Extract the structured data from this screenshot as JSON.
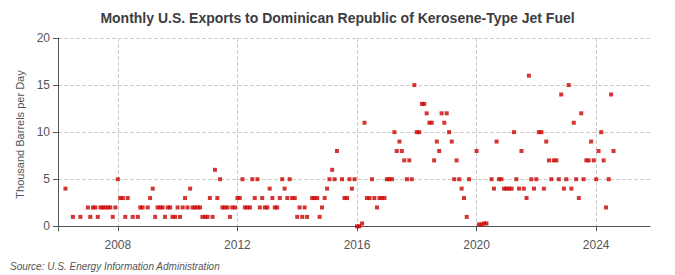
{
  "chart_data": {
    "type": "scatter",
    "title": "Monthly U.S. Exports to Dominican Republic of Kerosene-Type Jet Fuel",
    "ylabel": "Thousand Barrels per Day",
    "annotations": [
      "Source: U.S. Energy Information Administration"
    ],
    "color": "#cc0000",
    "marker": "square",
    "grid": true,
    "xlim": [
      2006.0,
      2025.8
    ],
    "xticks": [
      2008,
      2012,
      2016,
      2020,
      2024
    ],
    "ylim": [
      -0.5,
      20
    ],
    "yticks": [
      0,
      5,
      10,
      15,
      20
    ],
    "x": [
      2006.25,
      2006.5,
      2006.75,
      2007.0,
      2007.08,
      2007.17,
      2007.25,
      2007.33,
      2007.42,
      2007.5,
      2007.58,
      2007.67,
      2007.75,
      2007.83,
      2007.92,
      2008.0,
      2008.08,
      2008.17,
      2008.25,
      2008.33,
      2008.5,
      2008.67,
      2008.75,
      2008.83,
      2009.0,
      2009.08,
      2009.17,
      2009.25,
      2009.33,
      2009.42,
      2009.5,
      2009.58,
      2009.67,
      2009.75,
      2009.83,
      2009.92,
      2010.0,
      2010.08,
      2010.17,
      2010.25,
      2010.33,
      2010.42,
      2010.5,
      2010.58,
      2010.67,
      2010.75,
      2010.83,
      2010.92,
      2011.0,
      2011.08,
      2011.17,
      2011.25,
      2011.33,
      2011.42,
      2011.5,
      2011.58,
      2011.67,
      2011.75,
      2011.83,
      2011.92,
      2012.0,
      2012.08,
      2012.17,
      2012.25,
      2012.33,
      2012.42,
      2012.5,
      2012.58,
      2012.67,
      2012.75,
      2012.83,
      2012.92,
      2013.0,
      2013.08,
      2013.17,
      2013.25,
      2013.33,
      2013.42,
      2013.5,
      2013.58,
      2013.67,
      2013.75,
      2013.83,
      2013.92,
      2014.0,
      2014.08,
      2014.17,
      2014.25,
      2014.33,
      2014.5,
      2014.58,
      2014.67,
      2014.75,
      2014.83,
      2014.92,
      2015.0,
      2015.08,
      2015.17,
      2015.25,
      2015.33,
      2015.5,
      2015.58,
      2015.67,
      2015.75,
      2015.83,
      2015.92,
      2016.0,
      2016.08,
      2016.17,
      2016.25,
      2016.33,
      2016.42,
      2016.5,
      2016.58,
      2016.67,
      2016.75,
      2016.83,
      2016.92,
      2017.0,
      2017.08,
      2017.17,
      2017.25,
      2017.33,
      2017.42,
      2017.5,
      2017.58,
      2017.67,
      2017.75,
      2017.83,
      2017.92,
      2018.0,
      2018.08,
      2018.17,
      2018.25,
      2018.33,
      2018.42,
      2018.5,
      2018.58,
      2018.67,
      2018.75,
      2018.83,
      2018.92,
      2019.0,
      2019.08,
      2019.17,
      2019.25,
      2019.33,
      2019.42,
      2019.5,
      2019.58,
      2019.67,
      2019.75,
      2020.0,
      2020.08,
      2020.17,
      2020.25,
      2020.33,
      2020.5,
      2020.58,
      2020.67,
      2020.75,
      2020.83,
      2020.92,
      2021.0,
      2021.08,
      2021.17,
      2021.25,
      2021.33,
      2021.42,
      2021.5,
      2021.58,
      2021.67,
      2021.75,
      2021.83,
      2021.92,
      2022.0,
      2022.08,
      2022.17,
      2022.25,
      2022.33,
      2022.42,
      2022.5,
      2022.58,
      2022.67,
      2022.75,
      2022.83,
      2022.92,
      2023.0,
      2023.08,
      2023.17,
      2023.25,
      2023.33,
      2023.42,
      2023.5,
      2023.58,
      2023.67,
      2023.75,
      2023.83,
      2023.92,
      2024.0,
      2024.08,
      2024.17,
      2024.25,
      2024.33,
      2024.42,
      2024.5,
      2024.58
    ],
    "values": [
      4,
      1,
      1,
      2,
      1,
      2,
      2,
      1,
      2,
      2,
      2,
      2,
      2,
      1,
      2,
      5,
      3,
      3,
      1,
      3,
      1,
      1,
      2,
      2,
      2,
      3,
      4,
      1,
      2,
      2,
      2,
      1,
      2,
      2,
      1,
      1,
      2,
      1,
      2,
      3,
      2,
      4,
      2,
      2,
      2,
      2,
      1,
      1,
      1,
      3,
      1,
      6,
      3,
      5,
      2,
      2,
      2,
      1,
      2,
      2,
      3,
      3,
      5,
      2,
      2,
      2,
      5,
      3,
      5,
      2,
      3,
      2,
      2,
      4,
      3,
      2,
      2,
      3,
      5,
      4,
      3,
      5,
      3,
      3,
      1,
      2,
      1,
      2,
      1,
      3,
      3,
      3,
      1,
      2,
      3,
      4,
      5,
      6,
      5,
      8,
      5,
      3,
      3,
      5,
      4,
      5,
      0,
      0,
      0.3,
      11,
      3,
      3,
      5,
      3,
      2,
      3,
      3,
      3,
      5,
      5,
      5,
      10,
      8,
      9,
      8,
      7,
      5,
      7,
      5,
      15,
      10,
      10,
      13,
      13,
      12,
      11,
      11,
      7,
      9,
      8,
      12,
      11,
      12,
      10,
      9,
      5,
      7,
      5,
      4,
      3,
      1,
      5,
      8,
      0.2,
      0.2,
      0.3,
      0.3,
      5,
      4,
      9,
      5,
      5,
      4,
      4,
      4,
      4,
      10,
      5,
      4,
      8,
      4,
      3,
      16,
      5,
      4,
      5,
      10,
      10,
      4,
      9,
      7,
      5,
      7,
      7,
      5,
      14,
      4,
      5,
      15,
      4,
      11,
      5,
      3,
      12,
      5,
      7,
      7,
      9,
      7,
      5,
      8,
      10,
      7,
      2,
      5,
      14,
      8
    ]
  }
}
